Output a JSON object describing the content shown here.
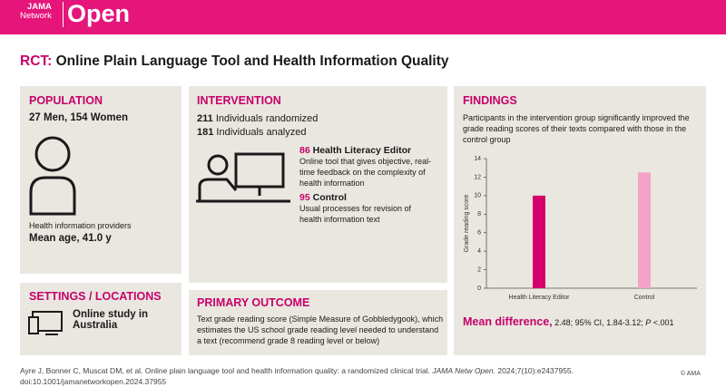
{
  "header": {
    "logo_top": "JAMA",
    "logo_bottom": "Network",
    "logo_main": "Open"
  },
  "title": {
    "prefix": "RCT:",
    "text": "Online Plain Language Tool and Health Information Quality"
  },
  "population": {
    "heading": "POPULATION",
    "counts": "27 Men, 154 Women",
    "who": "Health information providers",
    "age": "Mean age, 41.0 y"
  },
  "settings": {
    "heading": "SETTINGS / LOCATIONS",
    "text": "Online study in Australia"
  },
  "intervention": {
    "heading": "INTERVENTION",
    "randomized_n": "211",
    "randomized": "Individuals randomized",
    "analyzed_n": "181",
    "analyzed": "Individuals analyzed",
    "arms": [
      {
        "n": "86",
        "name": "Health Literacy Editor",
        "desc": "Online tool that gives objective, real-time feedback on the complexity of health information"
      },
      {
        "n": "95",
        "name": "Control",
        "desc": "Usual processes for revision of health information text"
      }
    ]
  },
  "primary_outcome": {
    "heading": "PRIMARY OUTCOME",
    "text": "Text grade reading score (Simple Measure of Gobbledygook), which estimates the US school grade reading level needed to understand a text (recommend grade 8 reading level or below)"
  },
  "findings": {
    "heading": "FINDINGS",
    "text": "Participants in the intervention group significantly improved the grade reading scores of their texts compared with those in the control group",
    "chart": {
      "type": "bar",
      "ylabel": "Grade reading score",
      "categories": [
        "Health Literacy Editor",
        "Control"
      ],
      "values": [
        10.0,
        12.5
      ],
      "colors": [
        "#d4006b",
        "#f4a3c7"
      ],
      "ylim": [
        0,
        14
      ],
      "yticks": [
        0,
        2,
        4,
        6,
        8,
        10,
        12,
        14
      ],
      "grid": false
    },
    "md_label": "Mean difference,",
    "md_text": "2.48; 95% CI, 1.84-3.12;",
    "md_p": "P",
    "md_pval": "<.001"
  },
  "citation": {
    "text": "Ayre J, Bonner C, Muscat DM, et al. Online plain language tool and health information quality: a randomized clinical trial.",
    "journal": "JAMA Netw Open.",
    "ref": "2024;7(10):e2437955.",
    "doi": "doi:10.1001/jamanetworkopen.2024.37955"
  },
  "copyright": "© AMA"
}
